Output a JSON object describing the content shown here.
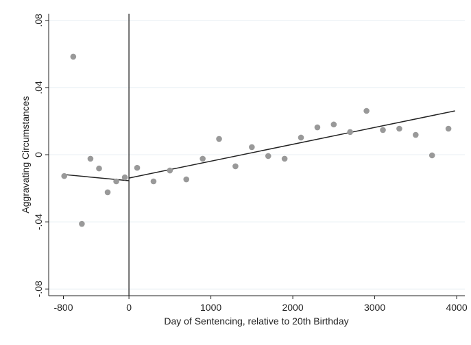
{
  "chart_data": {
    "type": "scatter",
    "xlabel": "Day of Sentencing, relative to 20th Birthday",
    "ylabel": "Aggravating Circumstances",
    "x": [
      -790,
      -680,
      -575,
      -470,
      -365,
      -260,
      -155,
      -50,
      100,
      300,
      500,
      700,
      900,
      1100,
      1300,
      1500,
      1700,
      1900,
      2100,
      2300,
      2500,
      2700,
      2900,
      3100,
      3300,
      3500,
      3700,
      3900
    ],
    "series": [
      {
        "color": "#999999",
        "values": [
          -0.0127,
          0.0584,
          -0.0412,
          -0.0024,
          -0.0082,
          -0.0224,
          -0.0159,
          -0.0135,
          -0.0078,
          -0.0159,
          -0.0094,
          -0.0147,
          -0.0024,
          0.0094,
          -0.0069,
          0.0045,
          -0.0008,
          -0.0024,
          0.0102,
          0.0163,
          0.018,
          0.0135,
          0.0261,
          0.0147,
          0.0155,
          0.0118,
          -0.0004,
          0.0155
        ]
      }
    ],
    "fit_lines": [
      {
        "color": "#222222",
        "x": [
          -800,
          0
        ],
        "values": [
          -0.0118,
          -0.0155
        ]
      },
      {
        "color": "#222222",
        "x": [
          0,
          3980
        ],
        "values": [
          -0.0139,
          0.0261
        ]
      }
    ],
    "vline": 0,
    "xlim": [
      -980,
      4100
    ],
    "ylim": [
      -0.084,
      0.084
    ],
    "xticks": [
      -800,
      0,
      1000,
      2000,
      3000,
      4000
    ],
    "yticks": [
      {
        "value": 0.08,
        "label": ".08"
      },
      {
        "value": 0.04,
        "label": ".04"
      },
      0,
      {
        "value": -0.04,
        "label": "-.04"
      },
      {
        "value": -0.08,
        "label": "-.08"
      }
    ],
    "grid": true
  }
}
